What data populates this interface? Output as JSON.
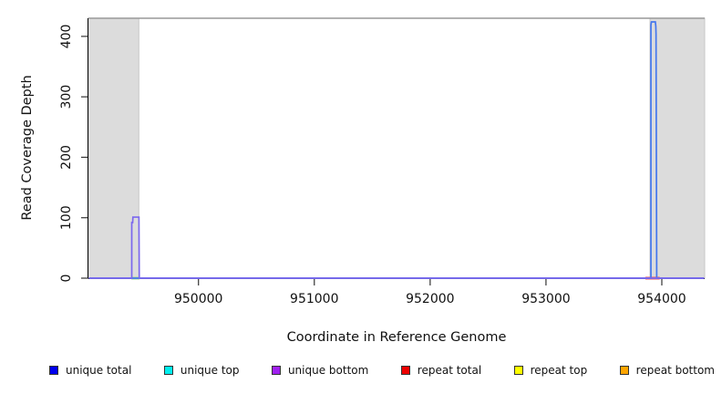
{
  "window": {
    "background": "#FFFFFF"
  },
  "chart_data": {
    "type": "line",
    "title": "",
    "xlabel": "Coordinate in Reference Genome",
    "ylabel": "Read Coverage Depth",
    "xlim": [
      949050,
      954370
    ],
    "ylim": [
      0,
      430
    ],
    "x_ticks": [
      950000,
      951000,
      952000,
      953000,
      954000
    ],
    "y_ticks": [
      0,
      100,
      200,
      300,
      400
    ],
    "grid": false,
    "legend_position": "bottom",
    "axis_color": "#000000",
    "top_border_color": "#999999",
    "background_regions": [
      {
        "name": "masked-region-left",
        "x0": 949050,
        "x1": 949485,
        "color": "#DCDCDC",
        "border": "#C8C8C8"
      },
      {
        "name": "masked-region-right",
        "x0": 953898,
        "x1": 954370,
        "color": "#DCDCDC",
        "border": "#C8C8C8"
      }
    ],
    "series": [
      {
        "name": "repeat-top-zero-segment",
        "color": "#A8D98E",
        "stroke_width": 3,
        "points": [
          [
            949421,
            0
          ],
          [
            949492,
            0
          ]
        ]
      },
      {
        "name": "repeat-total-zero-segment",
        "color": "#EE5555",
        "stroke_width": 3,
        "points": [
          [
            953858,
            0
          ],
          [
            953982,
            0
          ]
        ]
      },
      {
        "name": "unique-total",
        "color": "#4477EE",
        "stroke_width": 1.7,
        "points": [
          [
            949054,
            0
          ],
          [
            953906,
            0
          ],
          [
            953906,
            419
          ],
          [
            953910,
            424
          ],
          [
            953944,
            424
          ],
          [
            953948,
            417
          ],
          [
            953950,
            404
          ],
          [
            953956,
            0
          ],
          [
            954366,
            0
          ]
        ]
      },
      {
        "name": "unique-bottom",
        "color": "#7B68EE",
        "stroke_width": 1.7,
        "points": [
          [
            949054,
            0
          ],
          [
            949424,
            0
          ],
          [
            949424,
            92
          ],
          [
            949432,
            92
          ],
          [
            949434,
            101
          ],
          [
            949486,
            101
          ],
          [
            949489,
            0
          ],
          [
            954366,
            0
          ]
        ]
      }
    ],
    "legend": [
      {
        "label": "unique total",
        "color": "#0000EE"
      },
      {
        "label": "unique top",
        "color": "#00EEEE"
      },
      {
        "label": "unique bottom",
        "color": "#A020F0"
      },
      {
        "label": "repeat total",
        "color": "#EE0000"
      },
      {
        "label": "repeat top",
        "color": "#FFFF00"
      },
      {
        "label": "repeat bottom",
        "color": "#FFA500"
      }
    ]
  }
}
